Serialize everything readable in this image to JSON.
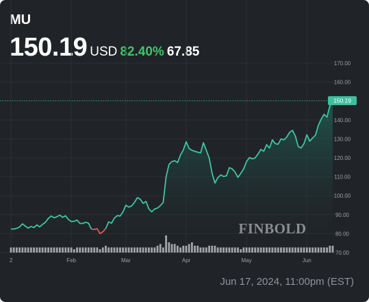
{
  "header": {
    "ticker": "MU",
    "price": "150.19",
    "currency": "USD",
    "change_pct": "82.40%",
    "change_abs": "67.85"
  },
  "footer": {
    "date": "Jun 17, 2024, 11:00pm (EST)"
  },
  "watermark": "FINBOLD",
  "colors": {
    "background": "#202327",
    "line_up": "#3ec6a0",
    "line_down": "#e05a5a",
    "area_top": "#1f5f55",
    "volume": "#b9bcc0",
    "label_bg": "#3fbf9f",
    "positive": "#3ec46d"
  },
  "chart_data": {
    "type": "area",
    "xlabel": "",
    "ylabel": "",
    "ylim": [
      70,
      170
    ],
    "yticks": [
      "70.00",
      "80.00",
      "90.00",
      "100.00",
      "110.00",
      "120.00",
      "130.00",
      "140.00",
      "150.00",
      "160.00",
      "170.00"
    ],
    "xtick_labels": [
      "2",
      "Feb",
      "Mar",
      "Apr",
      "May",
      "Jun"
    ],
    "xtick_index": [
      0,
      21,
      40,
      61,
      82,
      103
    ],
    "last_price_label": "150.19",
    "last_price": 150.19,
    "grid": true,
    "down_segment": [
      28,
      33
    ],
    "series": [
      {
        "values": [
          82.5,
          82.4,
          82.8,
          83.5,
          85.2,
          84.0,
          82.9,
          83.8,
          83.2,
          84.6,
          83.6,
          84.9,
          86.0,
          88.0,
          89.3,
          88.4,
          88.9,
          89.8,
          88.6,
          89.4,
          87.5,
          86.4,
          86.5,
          87.2,
          85.4,
          85.4,
          86.0,
          85.5,
          82.4,
          82.2,
          82.6,
          80.0,
          81.0,
          82.7,
          86.2,
          85.5,
          88.2,
          89.5,
          89.3,
          91.5,
          95.0,
          94.0,
          94.6,
          96.5,
          99.0,
          98.2,
          96.0,
          97.0,
          93.1,
          91.5,
          93.0,
          93.5,
          94.8,
          96.5,
          110.0,
          116.5,
          118.0,
          118.5,
          117.5,
          121.5,
          124.2,
          128.5,
          125.0,
          124.0,
          123.5,
          123.0,
          122.6,
          128.0,
          124.0,
          120.0,
          112.0,
          106.7,
          109.5,
          111.0,
          110.2,
          110.5,
          114.8,
          114.2,
          112.5,
          109.7,
          111.8,
          114.2,
          118.0,
          120.2,
          119.5,
          120.0,
          122.0,
          124.5,
          123.5,
          127.0,
          125.2,
          129.5,
          127.5,
          127.2,
          130.0,
          129.5,
          131.0,
          133.5,
          134.5,
          131.5,
          126.0,
          125.2,
          127.5,
          132.2,
          128.8,
          130.5,
          132.0,
          137.2,
          140.5,
          143.0,
          141.5,
          147.5,
          150.19
        ]
      }
    ],
    "volume": [
      3,
      3,
      3,
      3,
      3,
      3,
      3,
      3,
      3,
      3,
      3,
      3,
      3,
      3,
      3,
      3,
      3,
      3,
      3,
      3,
      3,
      3,
      2,
      3,
      3,
      3,
      3,
      3,
      3,
      3,
      3,
      2,
      3,
      4,
      3,
      3,
      3,
      3,
      3,
      3,
      3,
      3,
      3,
      3,
      3,
      3,
      3,
      3,
      3,
      3,
      3,
      4,
      5,
      3,
      10,
      6,
      5,
      5,
      4,
      3,
      4,
      4,
      5,
      6,
      4,
      4,
      3,
      3,
      3,
      4,
      4,
      4,
      3,
      3,
      3,
      3,
      3,
      3,
      3,
      3,
      2,
      3,
      3,
      3,
      3,
      3,
      3,
      3,
      3,
      3,
      3,
      3,
      3,
      3,
      3,
      3,
      3,
      3,
      3,
      3,
      3,
      3,
      3,
      3,
      3,
      3,
      3,
      3,
      3,
      3,
      3,
      4,
      4
    ]
  }
}
